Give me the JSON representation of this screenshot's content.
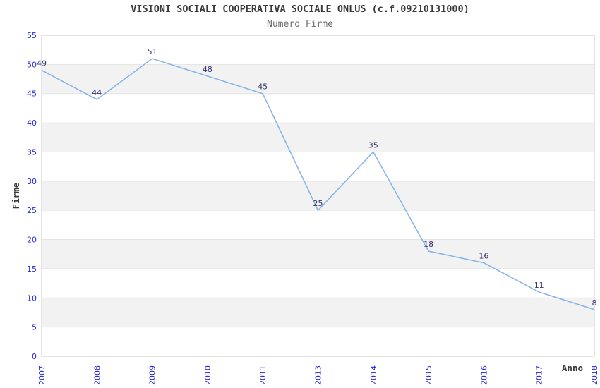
{
  "chart_data": {
    "type": "line",
    "title": "VISIONI SOCIALI COOPERATIVA SOCIALE ONLUS (c.f.09210131000)",
    "subtitle": "Numero Firme",
    "xlabel": "Anno",
    "ylabel": "Firme",
    "categories": [
      "2007",
      "2008",
      "2009",
      "2010",
      "2011",
      "2013",
      "2014",
      "2015",
      "2016",
      "2017",
      "2018"
    ],
    "values": [
      49,
      44,
      51,
      48,
      45,
      25,
      35,
      18,
      16,
      11,
      8
    ],
    "ylim": [
      0,
      55
    ],
    "ytick_step": 5,
    "yticks": [
      0,
      5,
      10,
      15,
      20,
      25,
      30,
      35,
      40,
      45,
      50,
      55
    ],
    "grid": true,
    "legend": "none",
    "plot_bands": "alternating gray stripes every 5 units (5-10, 15-20, 25-30, 35-40, 45-50)",
    "point_markers": false,
    "x_tick_rotation": -90,
    "colors": {
      "line": "#87b6e9",
      "tick": "#2424dd",
      "value_label": "#34346e",
      "band": "#f2f2f2",
      "grid": "#e4e4e4",
      "border": "#c9c9c9",
      "title": "#3a3a3a",
      "subtitle": "#6e6e6e",
      "background": "#ffffff"
    }
  }
}
